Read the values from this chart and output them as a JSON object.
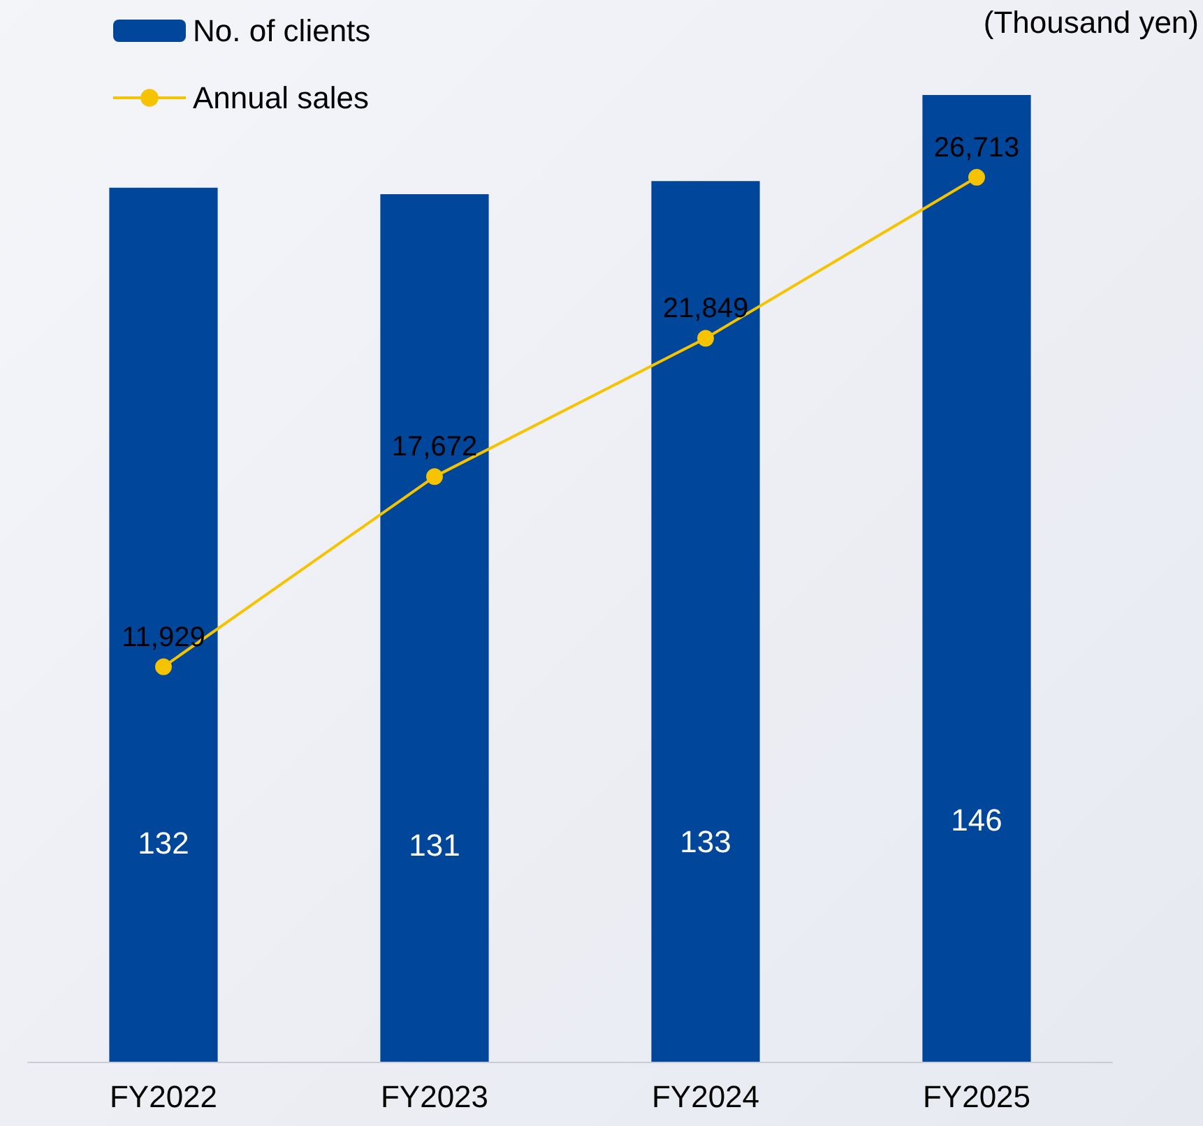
{
  "chart_data": {
    "type": "bar",
    "y2label": "(Thousand yen)",
    "categories": [
      "FY2022",
      "FY2023",
      "FY2024",
      "FY2025"
    ],
    "series": [
      {
        "name": "No. of clients",
        "color": "#00469b",
        "values": [
          132,
          131,
          133,
          146
        ]
      },
      {
        "name": "Annual sales",
        "type": "line",
        "axis": "y2",
        "color": "#f5c300",
        "values": [
          11929,
          17672,
          21849,
          26713
        ],
        "value_labels": [
          "11,929",
          "17,672",
          "21,849",
          "26,713"
        ]
      }
    ],
    "data_labels": true,
    "tick_labels": "x",
    "grid": false,
    "legend": "top left",
    "marker": "circle",
    "line_style": "solid"
  }
}
